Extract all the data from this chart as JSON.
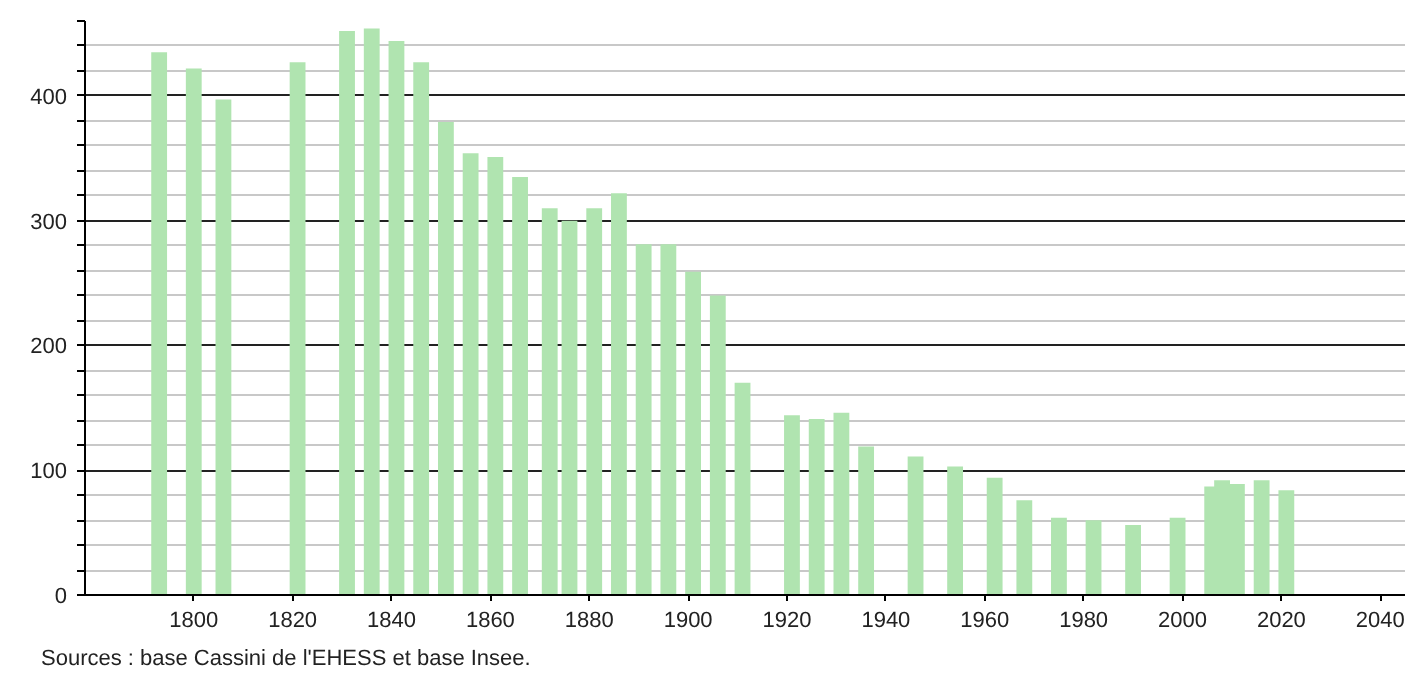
{
  "chart_data": {
    "type": "bar",
    "x": [
      1793,
      1800,
      1806,
      1821,
      1831,
      1836,
      1841,
      1846,
      1851,
      1856,
      1861,
      1866,
      1872,
      1876,
      1881,
      1886,
      1891,
      1896,
      1901,
      1906,
      1911,
      1921,
      1926,
      1931,
      1936,
      1946,
      1954,
      1962,
      1968,
      1975,
      1982,
      1990,
      1999,
      2006,
      2008,
      2011,
      2016,
      2021
    ],
    "values": [
      435,
      422,
      397,
      427,
      452,
      454,
      444,
      427,
      379,
      354,
      351,
      335,
      310,
      300,
      310,
      322,
      281,
      281,
      259,
      240,
      170,
      144,
      141,
      146,
      119,
      111,
      103,
      94,
      76,
      62,
      60,
      56,
      62,
      87,
      92,
      89,
      92,
      84
    ],
    "color": "#b0e4b0",
    "xlim": [
      1778,
      2045
    ],
    "xticks": [
      1800,
      1820,
      1840,
      1860,
      1880,
      1900,
      1920,
      1940,
      1960,
      1980,
      2000,
      2020,
      2040
    ],
    "ylim": [
      0,
      460
    ],
    "yticks": [
      0,
      {
        "value": 20,
        "label": null
      },
      {
        "value": 40,
        "label": null
      },
      {
        "value": 60,
        "label": null
      },
      {
        "value": 80,
        "label": null
      },
      100,
      {
        "value": 120,
        "label": null
      },
      {
        "value": 140,
        "label": null
      },
      {
        "value": 160,
        "label": null
      },
      {
        "value": 180,
        "label": null
      },
      200,
      {
        "value": 220,
        "label": null
      },
      {
        "value": 240,
        "label": null
      },
      {
        "value": 260,
        "label": null
      },
      {
        "value": 280,
        "label": null
      },
      300,
      {
        "value": 320,
        "label": null
      },
      {
        "value": 340,
        "label": null
      },
      {
        "value": 360,
        "label": null
      },
      {
        "value": 380,
        "label": null
      },
      400,
      {
        "value": 420,
        "label": null
      },
      {
        "value": 440,
        "label": null
      },
      {
        "value": 460,
        "label": null
      }
    ],
    "grid": "y",
    "annotations": [
      "Sources : base Cassini de l'EHESS et base Insee."
    ]
  }
}
